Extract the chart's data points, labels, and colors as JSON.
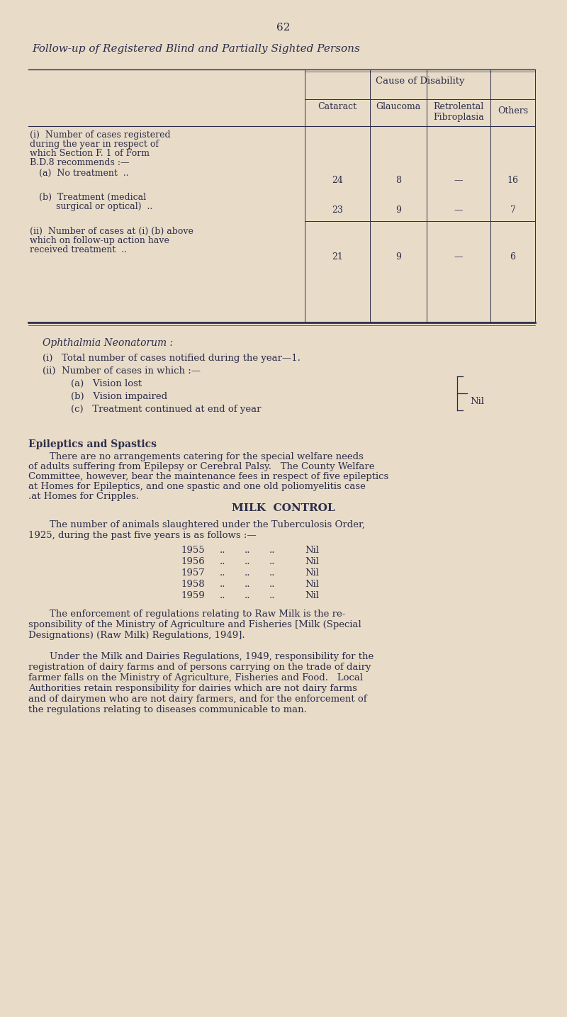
{
  "bg_color": "#e8dcc8",
  "text_color": "#2c2c4a",
  "page_number": "62",
  "title_italic": "Follow-up of Registered Blind and Partially Sighted Persons",
  "table": {
    "col_header_main": "Cause of Disability",
    "col_headers": [
      "Cataract",
      "Glaucoma",
      "Retrolental\nFibroplasia",
      "Others"
    ],
    "values_a": [
      "24",
      "8",
      "—",
      "16"
    ],
    "values_b": [
      "23",
      "9",
      "—",
      "7"
    ],
    "values_ii": [
      "21",
      "9",
      "—",
      "6"
    ]
  },
  "ophthalmia_section": {
    "title": "Ophthalmia Neonatorum :",
    "line1": "(i)   Total number of cases notified during the year—1.",
    "line2": "(ii)  Number of cases in which :—",
    "items": [
      "(a)   Vision lost",
      "(b)   Vision impaired",
      "(c)   Treatment continued at end of year"
    ],
    "nil_label": "Nil"
  },
  "epileptics_section": {
    "heading": "Epileptics and Spastics",
    "lines": [
      "There are no arrangements catering for the special welfare needs",
      "of adults suffering from Epilepsy or Cerebral Palsy.   The County Welfare",
      "Committee, however, bear the maintenance fees in respect of five epileptics",
      "at Homes for Epileptics, and one spastic and one old poliomyelitis case",
      ".at Homes for Cripples."
    ]
  },
  "milk_section": {
    "heading": "MILK  CONTROL",
    "para1_lines": [
      "The number of animals slaughtered under the Tuberculosis Order,",
      "1925, during the past five years is as follows :—"
    ],
    "years": [
      "1955",
      "1956",
      "1957",
      "1958",
      "1959"
    ],
    "year_values": [
      "Nil",
      "Nil",
      "Nil",
      "Nil",
      "Nil"
    ],
    "para2_lines": [
      "The enforcement of regulations relating to Raw Milk is the re-",
      "sponsibility of the Ministry of Agriculture and Fisheries [Milk (Special",
      "Designations) (Raw Milk) Regulations, 1949]."
    ],
    "para3_lines": [
      "Under the Milk and Dairies Regulations, 1949, responsibility for the",
      "registration of dairy farms and of persons carrying on the trade of dairy",
      "farmer falls on the Ministry of Agriculture, Fisheries and Food.   Local",
      "Authorities retain responsibility for dairies which are not dairy farms",
      "and of dairymen who are not dairy farmers, and for the enforcement of",
      "the regulations relating to diseases communicable to man."
    ]
  }
}
